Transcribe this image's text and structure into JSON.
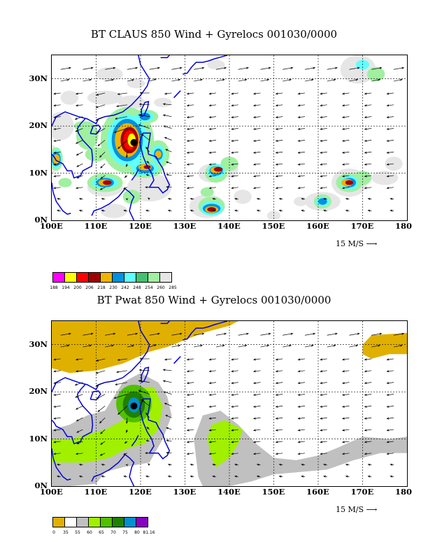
{
  "panels": [
    {
      "title": "BT CLAUS 850 Wind + Gyrelocs 001030/0000",
      "field": "clouds",
      "colorbar": {
        "colors": [
          "#ff00ff",
          "#ffff00",
          "#ff0000",
          "#a00000",
          "#f0b400",
          "#0090e0",
          "#60ffff",
          "#44c070",
          "#a0f0a0",
          "#e6e6e6"
        ],
        "labels": [
          "188",
          "194",
          "200",
          "206",
          "218",
          "230",
          "242",
          "248",
          "254",
          "260",
          "285"
        ]
      },
      "storm": {
        "lon": 118.5,
        "lat": 16.5
      }
    },
    {
      "title": "BT Pwat 850 Wind + Gyrelocs 001030/0000",
      "field": "pwat",
      "colorbar": {
        "colors": [
          "#e0b000",
          "#ffffff",
          "#c0c0c0",
          "#a0f000",
          "#50c000",
          "#208000",
          "#0090d0",
          "#8800c0"
        ],
        "labels": [
          "0",
          "35",
          "55",
          "60",
          "65",
          "70",
          "75",
          "80",
          "81.16"
        ]
      },
      "storm": {
        "lon": 118.5,
        "lat": 17.0
      }
    }
  ],
  "axes": {
    "x_ticks": [
      "100E",
      "110E",
      "120E",
      "130E",
      "140E",
      "150E",
      "160E",
      "170E",
      "180"
    ],
    "y_ticks": [
      "0N",
      "10N",
      "20N",
      "30N"
    ],
    "lon_range": [
      100,
      180
    ],
    "lat_range": [
      0,
      35
    ]
  },
  "reference_vector": {
    "label": "15 M/S"
  },
  "colors": {
    "coast": "#0000dd",
    "storm_marker": "#000000"
  }
}
